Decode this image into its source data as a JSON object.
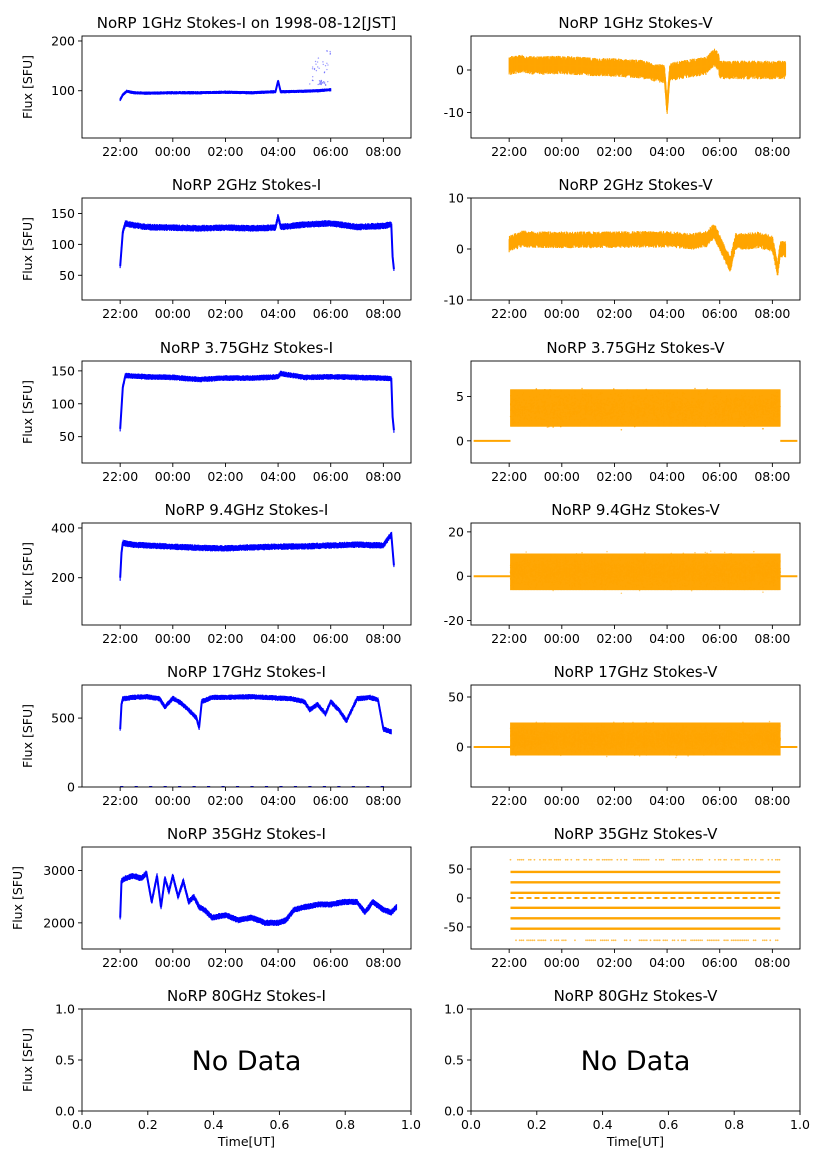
{
  "figure": {
    "ylabel": "Flux [SFU]",
    "xlabel": "Time[UT]",
    "no_data_text": "No Data"
  },
  "colors": {
    "stokes_i": "#0000ff",
    "stokes_v": "#ffa500"
  },
  "chart_data": [
    {
      "id": "p1i",
      "type": "line",
      "title": "NoRP 1GHz Stokes-I on 1998-08-12[JST]",
      "ylabel": "Flux [SFU]",
      "x_ticks": [
        "22:00",
        "00:00",
        "02:00",
        "04:00",
        "06:00",
        "08:00"
      ],
      "x_unit": "hours since 00:00 UT",
      "xlim": [
        -3.45,
        9.05
      ],
      "ylim": [
        5,
        210
      ],
      "y_ticks": [
        100,
        200
      ],
      "series": [
        {
          "x": [
            -2.0,
            -1.9,
            -1.75,
            -1.5,
            -1.0,
            0.0,
            1.0,
            2.0,
            3.0,
            3.9,
            4.0,
            4.1,
            5.0,
            5.5,
            6.0
          ],
          "y": [
            82,
            92,
            99,
            96,
            95,
            96,
            96,
            97,
            96,
            98,
            120,
            98,
            99,
            100,
            102
          ],
          "band": 3,
          "scatter_x": [
            5.3,
            5.5,
            5.7,
            5.9,
            5.8,
            5.6
          ],
          "scatter_y": [
            150,
            175,
            120,
            190,
            165,
            130
          ]
        }
      ]
    },
    {
      "id": "p1v",
      "type": "line",
      "title": "NoRP 1GHz Stokes-V",
      "x_ticks": [
        "22:00",
        "00:00",
        "02:00",
        "04:00",
        "06:00",
        "08:00"
      ],
      "xlim": [
        -3.45,
        9.05
      ],
      "ylim": [
        -16,
        8
      ],
      "y_ticks": [
        -10,
        0
      ],
      "series": [
        {
          "x": [
            -2.0,
            -1.5,
            -1.0,
            0.0,
            1.0,
            2.0,
            3.0,
            3.5,
            3.9,
            4.0,
            4.1,
            4.5,
            5.0,
            5.5,
            5.8,
            5.95,
            6.0,
            8.5
          ],
          "y": [
            1,
            1.5,
            1,
            1.2,
            0.8,
            0.6,
            0.2,
            -0.5,
            -1,
            -9,
            -0.5,
            0,
            0.5,
            1,
            3,
            2,
            0,
            0
          ],
          "band": 2
        }
      ]
    },
    {
      "id": "p2i",
      "type": "line",
      "title": "NoRP 2GHz Stokes-I",
      "x_ticks": [
        "22:00",
        "00:00",
        "02:00",
        "04:00",
        "06:00",
        "08:00"
      ],
      "xlim": [
        -3.45,
        9.05
      ],
      "ylim": [
        10,
        175
      ],
      "y_ticks": [
        50,
        100,
        150
      ],
      "series": [
        {
          "x": [
            -2.0,
            -1.9,
            -1.8,
            -1.5,
            -1.0,
            0.0,
            1.0,
            2.0,
            3.0,
            3.9,
            4.0,
            4.1,
            5.0,
            6.0,
            7.0,
            8.0,
            8.3,
            8.35,
            8.4
          ],
          "y": [
            65,
            120,
            134,
            131,
            128,
            127,
            126,
            127,
            126,
            127,
            145,
            128,
            132,
            134,
            128,
            130,
            132,
            80,
            60
          ],
          "band": 5
        }
      ]
    },
    {
      "id": "p2v",
      "type": "line",
      "title": "NoRP 2GHz Stokes-V",
      "x_ticks": [
        "22:00",
        "00:00",
        "02:00",
        "04:00",
        "06:00",
        "08:00"
      ],
      "xlim": [
        -3.45,
        9.05
      ],
      "ylim": [
        -10,
        10
      ],
      "y_ticks": [
        -10,
        0,
        10
      ],
      "series": [
        {
          "x": [
            -2.0,
            -1.5,
            -1.0,
            0.0,
            1.0,
            2.0,
            3.0,
            4.0,
            5.0,
            5.5,
            5.8,
            6.2,
            6.4,
            6.6,
            7.0,
            7.5,
            8.0,
            8.2,
            8.3,
            8.5
          ],
          "y": [
            1,
            2,
            1.8,
            1.8,
            1.8,
            1.8,
            1.9,
            1.9,
            1.5,
            2,
            3.5,
            -1,
            -3,
            1.5,
            1.5,
            1.8,
            1,
            -4,
            0,
            0
          ],
          "band": 1.5
        }
      ]
    },
    {
      "id": "p3i",
      "type": "line",
      "title": "NoRP 3.75GHz Stokes-I",
      "x_ticks": [
        "22:00",
        "00:00",
        "02:00",
        "04:00",
        "06:00",
        "08:00"
      ],
      "xlim": [
        -3.45,
        9.05
      ],
      "ylim": [
        10,
        165
      ],
      "y_ticks": [
        50,
        100,
        150
      ],
      "series": [
        {
          "x": [
            -2.0,
            -1.9,
            -1.8,
            -1.5,
            -1.0,
            0.0,
            1.0,
            2.0,
            3.0,
            4.0,
            4.1,
            5.0,
            6.0,
            7.0,
            8.0,
            8.3,
            8.35,
            8.4
          ],
          "y": [
            62,
            125,
            143,
            142,
            141,
            140,
            137,
            139,
            139,
            141,
            146,
            140,
            141,
            140,
            139,
            138,
            80,
            60
          ],
          "band": 4
        }
      ]
    },
    {
      "id": "p3v",
      "type": "scatter",
      "title": "NoRP 3.75GHz Stokes-V",
      "x_ticks": [
        "22:00",
        "00:00",
        "02:00",
        "04:00",
        "06:00",
        "08:00"
      ],
      "xlim": [
        -3.45,
        9.05
      ],
      "ylim": [
        -2.5,
        9
      ],
      "y_ticks": [
        0,
        5
      ],
      "series": [
        {
          "x_range": [
            -1.95,
            8.3
          ],
          "center": 3.7,
          "spread": 2.8,
          "gaps": [
            -0.5,
            2.5,
            5.5
          ],
          "baseline": 0
        }
      ]
    },
    {
      "id": "p4i",
      "type": "line",
      "title": "NoRP 9.4GHz Stokes-I",
      "x_ticks": [
        "22:00",
        "00:00",
        "02:00",
        "04:00",
        "06:00",
        "08:00"
      ],
      "xlim": [
        -3.45,
        9.05
      ],
      "ylim": [
        10,
        420
      ],
      "y_ticks": [
        200,
        400
      ],
      "series": [
        {
          "x": [
            -2.0,
            -1.95,
            -1.9,
            -1.5,
            -1.0,
            0.0,
            1.0,
            2.0,
            3.0,
            4.0,
            5.0,
            6.0,
            7.0,
            8.0,
            8.3,
            8.4
          ],
          "y": [
            200,
            300,
            340,
            332,
            330,
            325,
            320,
            318,
            322,
            325,
            326,
            330,
            333,
            330,
            375,
            250
          ],
          "band": 12
        }
      ]
    },
    {
      "id": "p4v",
      "type": "scatter",
      "title": "NoRP 9.4GHz Stokes-V",
      "x_ticks": [
        "22:00",
        "00:00",
        "02:00",
        "04:00",
        "06:00",
        "08:00"
      ],
      "xlim": [
        -3.45,
        9.05
      ],
      "ylim": [
        -22,
        24
      ],
      "y_ticks": [
        -20,
        0,
        20
      ],
      "series": [
        {
          "x_range": [
            -1.95,
            8.3
          ],
          "center": 2,
          "spread": 11,
          "gaps": [],
          "baseline": 0
        }
      ]
    },
    {
      "id": "p5i",
      "type": "line",
      "title": "NoRP 17GHz Stokes-I",
      "x_ticks": [
        "22:00",
        "00:00",
        "02:00",
        "04:00",
        "06:00",
        "08:00"
      ],
      "xlim": [
        -3.45,
        9.05
      ],
      "ylim": [
        0,
        740
      ],
      "y_ticks": [
        0,
        500
      ],
      "series": [
        {
          "x": [
            -2.0,
            -1.95,
            -1.9,
            -1.5,
            -1.0,
            -0.5,
            -0.3,
            0.0,
            0.3,
            0.6,
            0.9,
            1.0,
            1.1,
            1.5,
            2.0,
            3.0,
            4.0,
            4.5,
            5.0,
            5.2,
            5.5,
            5.8,
            6.0,
            6.3,
            6.6,
            7.0,
            7.5,
            7.8,
            8.0,
            8.3
          ],
          "y": [
            420,
            600,
            640,
            650,
            655,
            640,
            580,
            645,
            610,
            560,
            500,
            430,
            620,
            650,
            650,
            655,
            645,
            640,
            620,
            560,
            600,
            530,
            620,
            560,
            480,
            640,
            650,
            630,
            420,
            400
          ],
          "band": 18,
          "baseline_dots": 0
        }
      ]
    },
    {
      "id": "p5v",
      "type": "scatter",
      "title": "NoRP 17GHz Stokes-V",
      "x_ticks": [
        "22:00",
        "00:00",
        "02:00",
        "04:00",
        "06:00",
        "08:00"
      ],
      "xlim": [
        -3.45,
        9.05
      ],
      "ylim": [
        -40,
        62
      ],
      "y_ticks": [
        0,
        50
      ],
      "series": [
        {
          "x_range": [
            -1.95,
            8.3
          ],
          "center": 8,
          "spread": 22,
          "gaps": [],
          "baseline": 0
        }
      ]
    },
    {
      "id": "p6i",
      "type": "line",
      "title": "NoRP 35GHz Stokes-I",
      "x_ticks": [
        "22:00",
        "00:00",
        "02:00",
        "04:00",
        "06:00",
        "08:00"
      ],
      "xlim": [
        -3.45,
        9.05
      ],
      "ylim": [
        1500,
        3450
      ],
      "y_ticks": [
        2000,
        3000
      ],
      "series": [
        {
          "x": [
            -2.0,
            -1.95,
            -1.8,
            -1.5,
            -1.2,
            -1.0,
            -0.8,
            -0.6,
            -0.45,
            -0.3,
            -0.15,
            0.0,
            0.2,
            0.4,
            0.6,
            0.8,
            1.0,
            1.2,
            1.5,
            2.0,
            2.5,
            3.0,
            3.5,
            4.0,
            4.3,
            4.6,
            5.0,
            5.5,
            6.0,
            6.5,
            7.0,
            7.3,
            7.6,
            8.0,
            8.3,
            8.5
          ],
          "y": [
            2100,
            2800,
            2850,
            2900,
            2850,
            2950,
            2400,
            2900,
            2300,
            2850,
            2600,
            2900,
            2500,
            2800,
            2400,
            2500,
            2300,
            2250,
            2100,
            2150,
            2050,
            2100,
            2000,
            2000,
            2050,
            2250,
            2300,
            2350,
            2350,
            2400,
            2400,
            2200,
            2400,
            2250,
            2200,
            2300
          ],
          "band": 55
        }
      ]
    },
    {
      "id": "p6v",
      "type": "scatter",
      "title": "NoRP 35GHz Stokes-V",
      "x_ticks": [
        "22:00",
        "00:00",
        "02:00",
        "04:00",
        "06:00",
        "08:00"
      ],
      "xlim": [
        -3.45,
        9.05
      ],
      "ylim": [
        -88,
        88
      ],
      "y_ticks": [
        -50,
        0,
        50
      ],
      "series": [
        {
          "x_range": [
            -1.95,
            8.3
          ],
          "levels": [
            45,
            27,
            9,
            -17,
            -35,
            -53
          ],
          "sparse_levels": [
            66,
            -73
          ],
          "baseline": 0
        }
      ]
    },
    {
      "id": "p7i",
      "type": "line",
      "title": "NoRP 80GHz Stokes-I",
      "xlabel": "Time[UT]",
      "xlim": [
        0,
        1
      ],
      "ylim": [
        0,
        1
      ],
      "x_ticks": [
        "0.0",
        "0.2",
        "0.4",
        "0.6",
        "0.8",
        "1.0"
      ],
      "y_ticks": [
        "0.0",
        "0.5",
        "1.0"
      ],
      "no_data": true,
      "series": []
    },
    {
      "id": "p7v",
      "type": "line",
      "title": "NoRP 80GHz Stokes-V",
      "xlabel": "Time[UT]",
      "xlim": [
        0,
        1
      ],
      "ylim": [
        0,
        1
      ],
      "x_ticks": [
        "0.0",
        "0.2",
        "0.4",
        "0.6",
        "0.8",
        "1.0"
      ],
      "y_ticks": [
        "0.0",
        "0.5",
        "1.0"
      ],
      "no_data": true,
      "series": []
    }
  ]
}
